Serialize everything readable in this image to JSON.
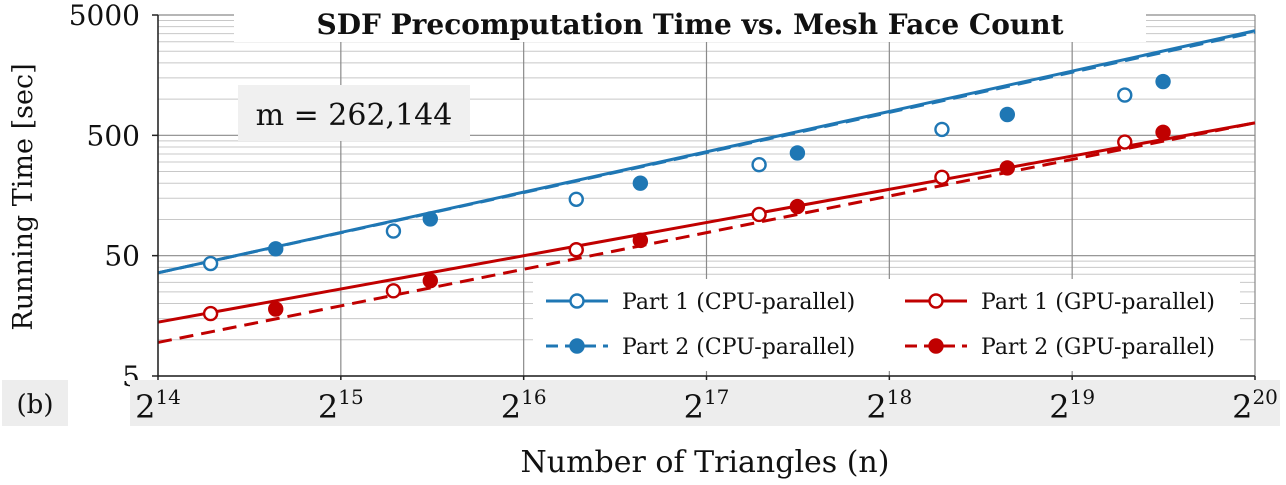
{
  "chart_data": {
    "type": "line",
    "title": "SDF Precomputation Time vs. Mesh Face Count",
    "xlabel": "Number of Triangles (n)",
    "ylabel": "Running Time [sec]",
    "panel_label": "(b)",
    "annotation": "m = 262,144",
    "x_scale": "log2",
    "y_scale": "log10",
    "xlim": [
      16384,
      1048576
    ],
    "ylim": [
      5,
      5000
    ],
    "x_ticks": [
      {
        "value": 16384,
        "base": "2",
        "exp": "14"
      },
      {
        "value": 32768,
        "base": "2",
        "exp": "15"
      },
      {
        "value": 65536,
        "base": "2",
        "exp": "16"
      },
      {
        "value": 131072,
        "base": "2",
        "exp": "17"
      },
      {
        "value": 262144,
        "base": "2",
        "exp": "18"
      },
      {
        "value": 524288,
        "base": "2",
        "exp": "19"
      },
      {
        "value": 1048576,
        "base": "2",
        "exp": "20"
      }
    ],
    "y_ticks": [
      {
        "value": 5,
        "label": "5"
      },
      {
        "value": 50,
        "label": "50"
      },
      {
        "value": 500,
        "label": "500"
      },
      {
        "value": 5000,
        "label": "5000"
      }
    ],
    "grid": true,
    "legend_position": "bottom-right",
    "series": [
      {
        "name": "Part 1 (CPU-parallel)",
        "color": "#1f77b4",
        "line_style": "solid",
        "marker": "open-circle",
        "line": {
          "x": [
            16384,
            1048576
          ],
          "y": [
            36,
            3700
          ]
        },
        "x": [
          20000,
          40000,
          80000,
          160000,
          320000,
          640000
        ],
        "y": [
          43,
          80,
          147,
          285,
          560,
          1080
        ]
      },
      {
        "name": "Part 2 (CPU-parallel)",
        "color": "#1f77b4",
        "line_style": "dashed",
        "marker": "filled-circle",
        "line": {
          "x": [
            16384,
            1048576
          ],
          "y": [
            36,
            3600
          ]
        },
        "x": [
          25600,
          46000,
          102000,
          185000,
          410000,
          740000
        ],
        "y": [
          57,
          101,
          200,
          357,
          745,
          1400
        ]
      },
      {
        "name": "Part 1 (GPU-parallel)",
        "color": "#c00000",
        "line_style": "solid",
        "marker": "open-circle",
        "line": {
          "x": [
            16384,
            1048576
          ],
          "y": [
            14,
            635
          ]
        },
        "x": [
          20000,
          40000,
          80000,
          160000,
          320000,
          640000
        ],
        "y": [
          16.5,
          25.5,
          56,
          110,
          224,
          440
        ]
      },
      {
        "name": "Part 2 (GPU-parallel)",
        "color": "#c00000",
        "line_style": "dashed",
        "marker": "filled-circle",
        "line": {
          "x": [
            16384,
            1048576
          ],
          "y": [
            9.5,
            635
          ]
        },
        "x": [
          25600,
          46000,
          102000,
          185000,
          410000,
          740000
        ],
        "y": [
          18,
          31,
          67,
          128,
          268,
          530
        ]
      }
    ]
  }
}
